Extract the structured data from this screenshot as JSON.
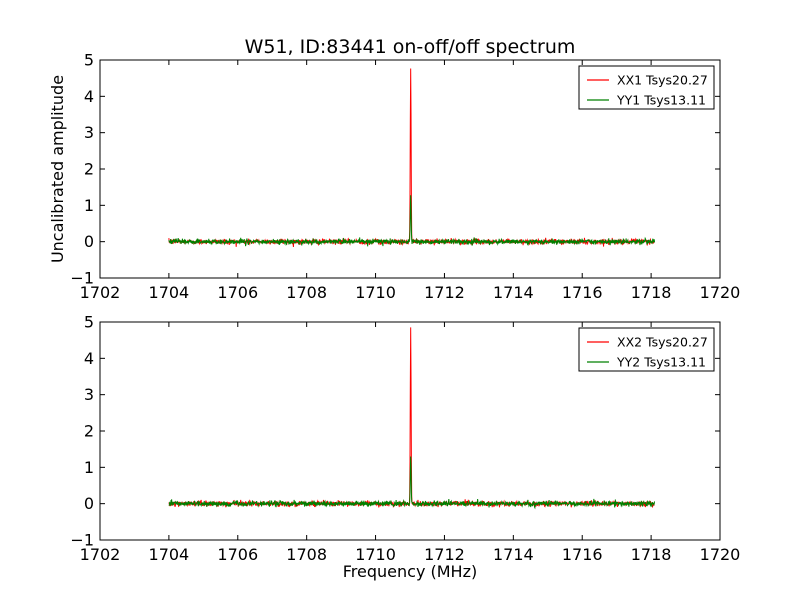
{
  "chart_data": [
    {
      "type": "line",
      "title": "W51, ID:83441 on-off/off spectrum",
      "xlabel": "",
      "ylabel": "Uncalibrated amplitude",
      "xlim": [
        1702,
        1720
      ],
      "ylim": [
        -1,
        5
      ],
      "xticks": [
        1702,
        1704,
        1706,
        1708,
        1710,
        1712,
        1714,
        1716,
        1718,
        1720
      ],
      "yticks": [
        -1,
        0,
        1,
        2,
        3,
        4,
        5
      ],
      "xtick_labels": [
        "1702",
        "1704",
        "1706",
        "1708",
        "1710",
        "1712",
        "1714",
        "1716",
        "1718",
        "1720"
      ],
      "ytick_labels": [
        "−1",
        "0",
        "1",
        "2",
        "3",
        "4",
        "5"
      ],
      "grid": false,
      "legend": "top-right",
      "x_range": [
        1704.0,
        1718.1
      ],
      "series": [
        {
          "name": "XX1 Tsys20.27",
          "color": "#ff0000",
          "baseline": 0.0,
          "noise": 0.035,
          "peak": {
            "x": 1711.02,
            "y": 4.83,
            "width": 0.012
          }
        },
        {
          "name": "YY1 Tsys13.11",
          "color": "#008000",
          "baseline": 0.0,
          "noise": 0.035,
          "peak": {
            "x": 1711.02,
            "y": 1.25,
            "width": 0.012
          }
        }
      ]
    },
    {
      "type": "line",
      "title": "",
      "xlabel": "Frequency (MHz)",
      "ylabel": "",
      "xlim": [
        1702,
        1720
      ],
      "ylim": [
        -1,
        5
      ],
      "xticks": [
        1702,
        1704,
        1706,
        1708,
        1710,
        1712,
        1714,
        1716,
        1718,
        1720
      ],
      "yticks": [
        -1,
        0,
        1,
        2,
        3,
        4,
        5
      ],
      "xtick_labels": [
        "1702",
        "1704",
        "1706",
        "1708",
        "1710",
        "1712",
        "1714",
        "1716",
        "1718",
        "1720"
      ],
      "ytick_labels": [
        "−1",
        "0",
        "1",
        "2",
        "3",
        "4",
        "5"
      ],
      "grid": false,
      "legend": "top-right",
      "x_range": [
        1704.0,
        1718.1
      ],
      "series": [
        {
          "name": "XX2 Tsys20.27",
          "color": "#ff0000",
          "baseline": 0.0,
          "noise": 0.035,
          "peak": {
            "x": 1711.02,
            "y": 4.83,
            "width": 0.012
          }
        },
        {
          "name": "YY2 Tsys13.11",
          "color": "#008000",
          "baseline": 0.0,
          "noise": 0.035,
          "peak": {
            "x": 1711.02,
            "y": 1.3,
            "width": 0.012
          }
        }
      ]
    }
  ]
}
